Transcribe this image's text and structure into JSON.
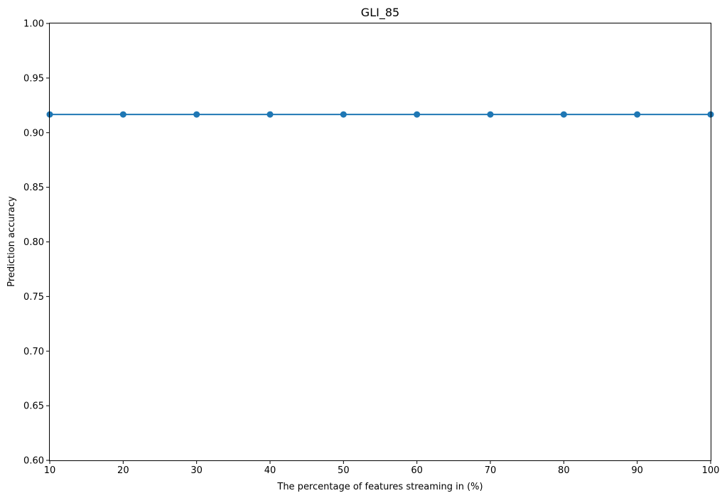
{
  "chart_data": {
    "type": "line",
    "title": "GLI_85",
    "xlabel": "The percentage of features streaming in (%)",
    "ylabel": "Prediction accuracy",
    "xlim": [
      10,
      100
    ],
    "ylim": [
      0.6,
      1.0
    ],
    "xticks": [
      "10",
      "20",
      "30",
      "40",
      "50",
      "60",
      "70",
      "80",
      "90",
      "100"
    ],
    "yticks": [
      "0.60",
      "0.65",
      "0.70",
      "0.75",
      "0.80",
      "0.85",
      "0.90",
      "0.95",
      "1.00"
    ],
    "grid": false,
    "series": [
      {
        "color": "#1f77b4",
        "marker": "circle",
        "x": [
          10,
          20,
          30,
          40,
          50,
          60,
          70,
          80,
          90,
          100
        ],
        "y": [
          0.9167,
          0.9167,
          0.9167,
          0.9167,
          0.9167,
          0.9167,
          0.9167,
          0.9167,
          0.9167,
          0.9167
        ]
      }
    ]
  }
}
